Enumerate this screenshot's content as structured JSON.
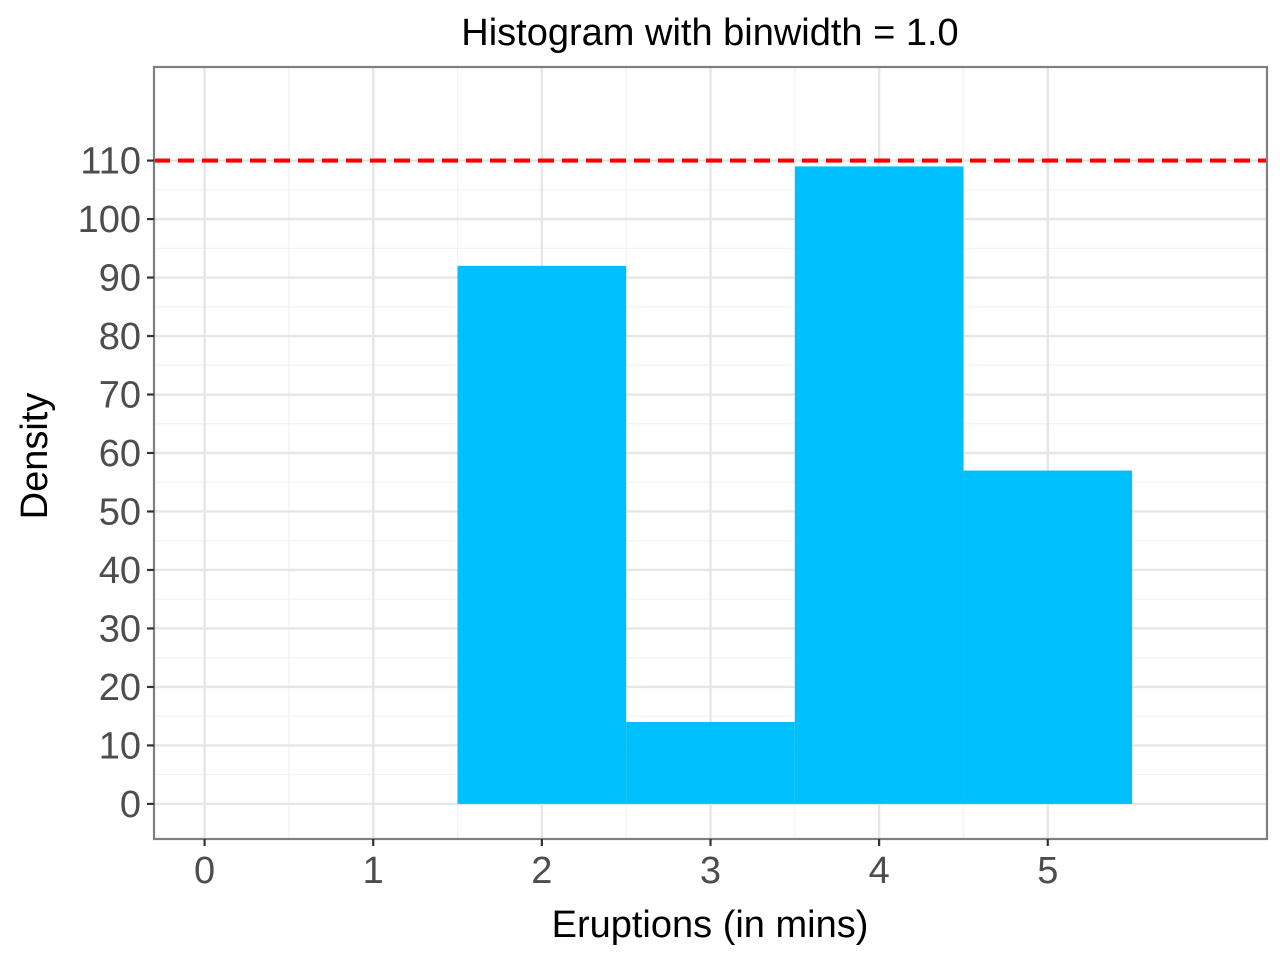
{
  "chart_data": {
    "type": "bar",
    "title": "Histogram with binwidth = 1.0",
    "xlabel": "Eruptions (in mins)",
    "ylabel": "Density",
    "bins": [
      {
        "x0": 1.5,
        "x1": 2.5,
        "value": 92
      },
      {
        "x0": 2.5,
        "x1": 3.5,
        "value": 14
      },
      {
        "x0": 3.5,
        "x1": 4.5,
        "value": 109
      },
      {
        "x0": 4.5,
        "x1": 5.5,
        "value": 57
      }
    ],
    "xlim": [
      -0.3,
      6.3
    ],
    "ylim": [
      -6,
      126
    ],
    "xticks": [
      0,
      1,
      2,
      3,
      4,
      5
    ],
    "yticks": [
      0,
      10,
      20,
      30,
      40,
      50,
      60,
      70,
      80,
      90,
      100,
      110
    ],
    "reference_line": {
      "y": 110,
      "color": "#ff0000",
      "style": "dashed"
    },
    "bar_color": "#00bfff",
    "grid": true,
    "legend": "none"
  }
}
